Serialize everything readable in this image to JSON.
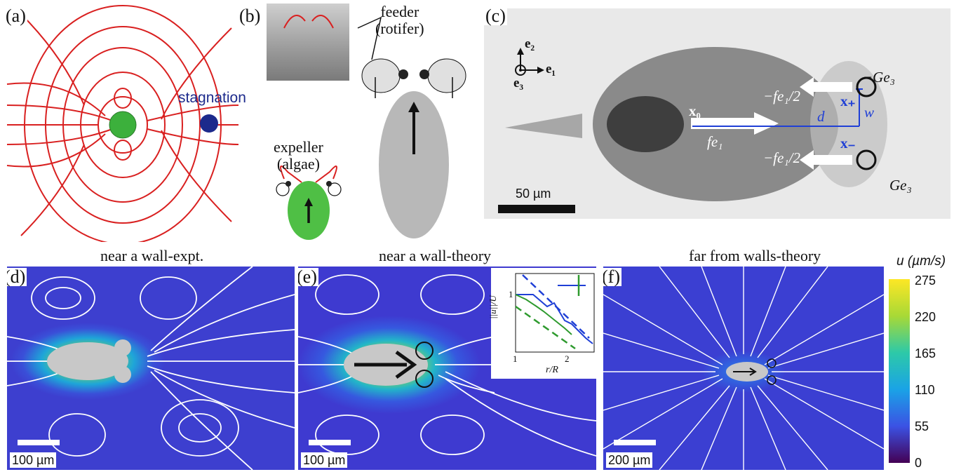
{
  "panels": {
    "a": {
      "label": "(a)",
      "stagnation": "stagnation"
    },
    "b": {
      "label": "(b)",
      "feeder_line1": "feeder",
      "feeder_line2": "(rotifer)",
      "expeller_line1": "expeller",
      "expeller_line2": "(algae)"
    },
    "c": {
      "label": "(c)",
      "e2": "e₂",
      "e1": "e₁",
      "e3": "e₃",
      "f_half_top": "−fe₁/2",
      "f_half_bottom": "−fe₁/2",
      "G_top": "−Ge₃",
      "G_bottom": "Ge₃",
      "x0": "x₀",
      "fe1": "fe₁",
      "xplus": "x₊",
      "xminus": "x₋",
      "d": "d",
      "w": "w",
      "scale": "50 µm"
    },
    "d": {
      "label": "(d)",
      "title": "near a wall-expt.",
      "scale": "100 µm"
    },
    "e": {
      "label": "(e)",
      "title": "near a wall-theory",
      "scale": "100 µm",
      "inset": {
        "ylabel": "||u||/U",
        "xlabel": "r/R",
        "xticks": [
          "1",
          "2"
        ],
        "yticks": [
          "1"
        ]
      }
    },
    "f": {
      "label": "(f)",
      "title": "far from walls-theory",
      "scale": "200 µm"
    }
  },
  "colorbar": {
    "title": "u (µm/s)",
    "ticks": [
      "275",
      "220",
      "165",
      "110",
      "55",
      "0"
    ],
    "colors": [
      "#440154",
      "#3b52e4",
      "#1aa3e6",
      "#2dc9a8",
      "#a8d936",
      "#fde725"
    ]
  },
  "colors": {
    "streamline_red": "#d92020",
    "stagnation_blue": "#1c2a8c",
    "algae_green": "#3cb03c",
    "scale_blue": "#1f3fd6"
  }
}
